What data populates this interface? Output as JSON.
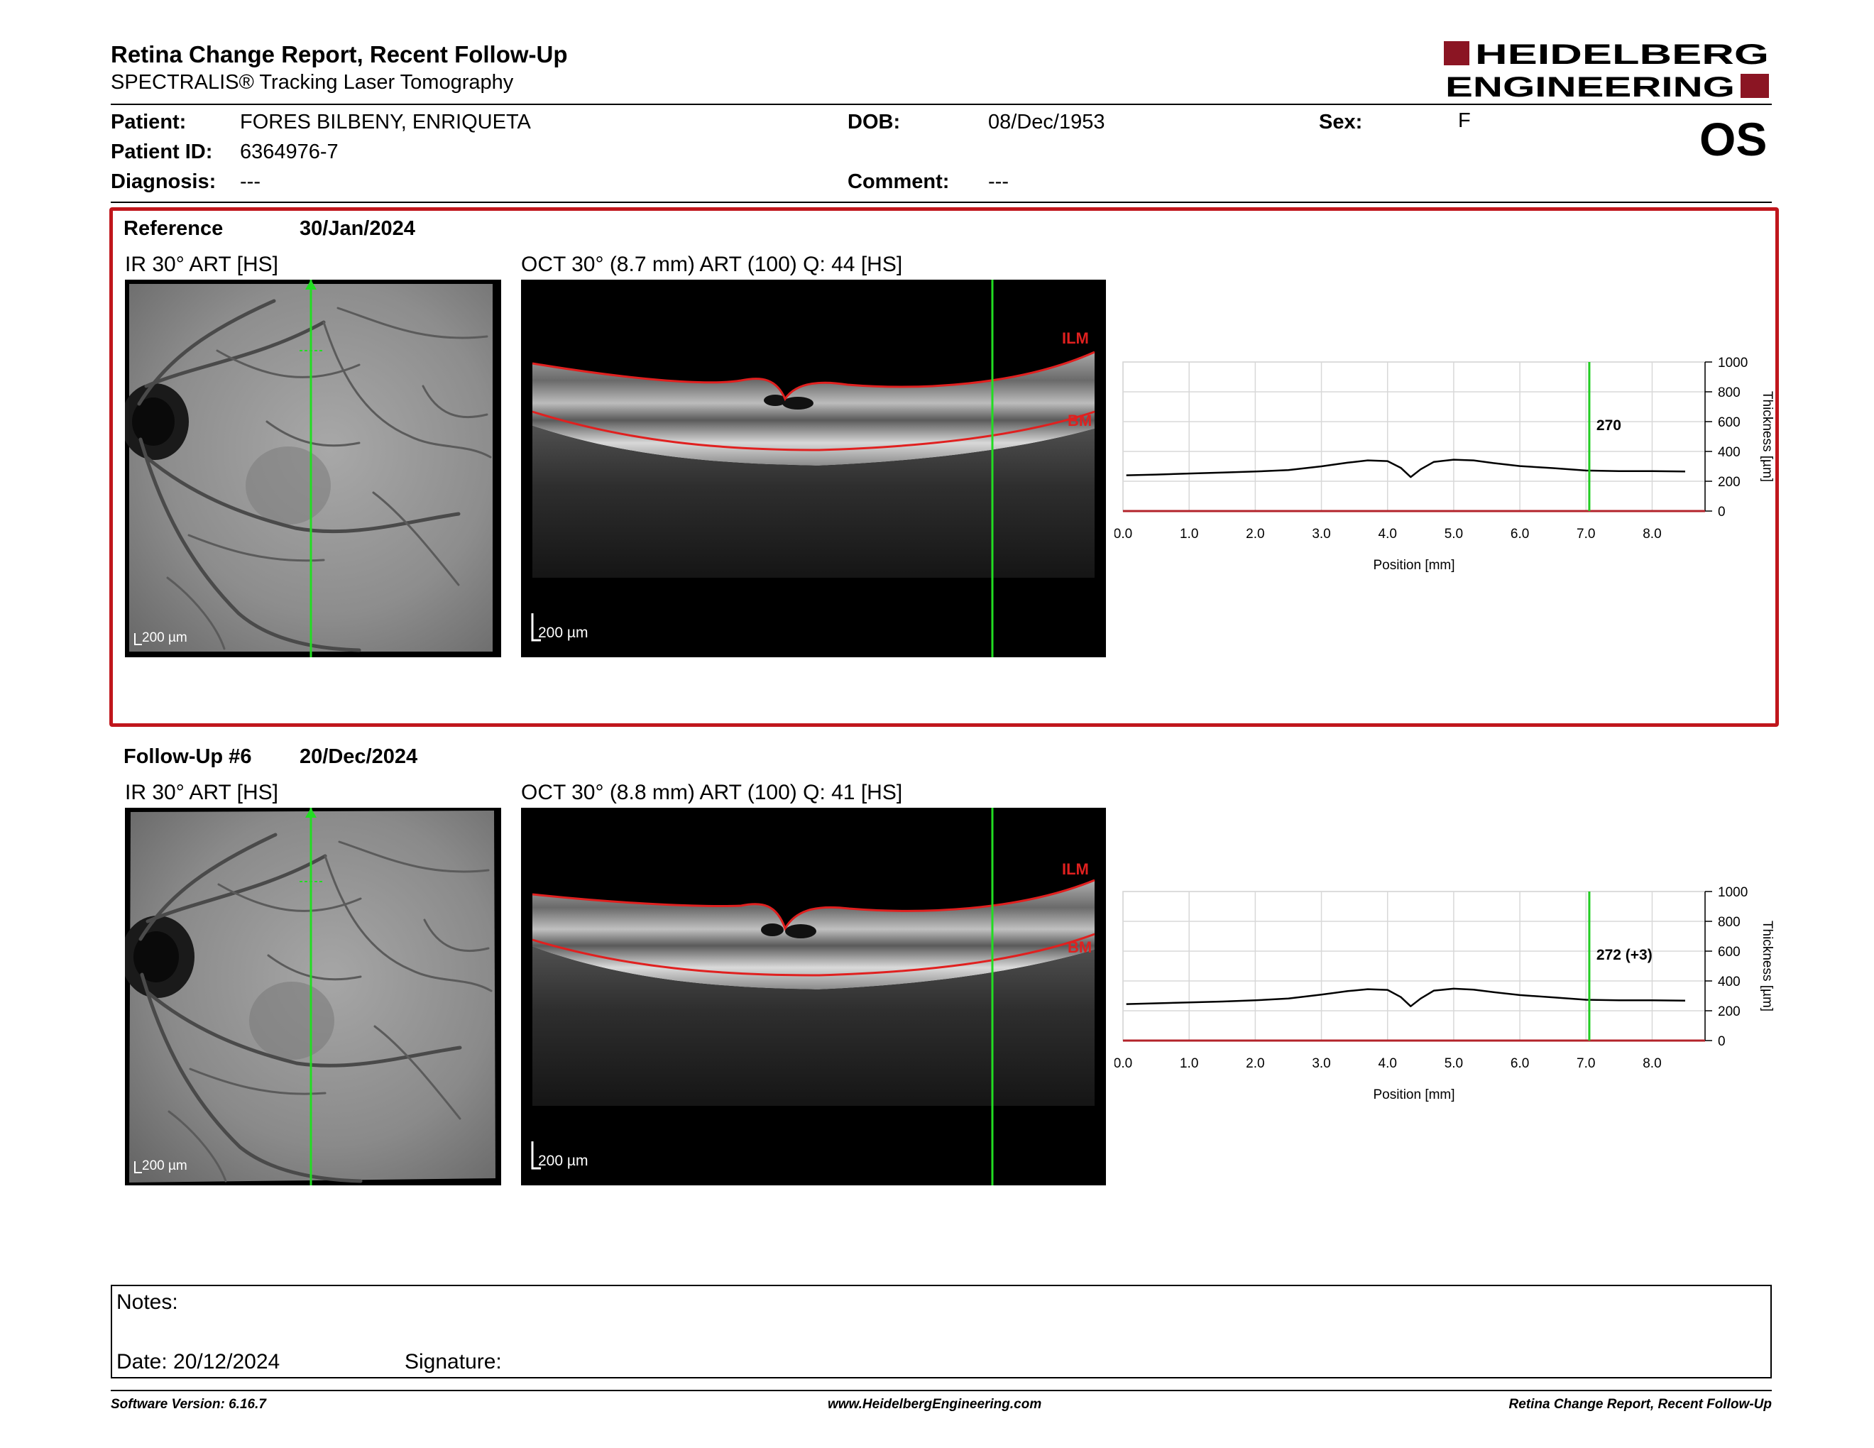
{
  "header": {
    "title": "Retina Change Report, Recent Follow-Up",
    "subtitle": "SPECTRALIS® Tracking Laser Tomography",
    "logo_line1": "HEIDELBERG",
    "logo_line2": "ENGINEERING",
    "eye": "OS"
  },
  "patient": {
    "patient_label": "Patient:",
    "patient_value": "FORES BILBENY, ENRIQUETA",
    "id_label": "Patient ID:",
    "id_value": "6364976-7",
    "diagnosis_label": "Diagnosis:",
    "diagnosis_value": "---",
    "dob_label": "DOB:",
    "dob_value": "08/Dec/1953",
    "comment_label": "Comment:",
    "comment_value": "---",
    "sex_label": "Sex:",
    "sex_value": "F"
  },
  "reference": {
    "label": "Reference",
    "date": "30/Jan/2024",
    "ir_title": "IR 30° ART [HS]",
    "oct_title": "OCT 30° (8.7 mm) ART (100) Q: 44 [HS]",
    "scale_ir": "200 µm",
    "scale_oct": "200 µm",
    "ilm_label": "ILM",
    "bm_label": "BM"
  },
  "followup": {
    "label": "Follow-Up #6",
    "date": "20/Dec/2024",
    "ir_title": "IR 30° ART [HS]",
    "oct_title": "OCT 30° (8.8 mm) ART (100) Q: 41 [HS]",
    "scale_ir": "200 µm",
    "scale_oct": "200 µm",
    "ilm_label": "ILM",
    "bm_label": "BM"
  },
  "chart_data": [
    {
      "type": "line",
      "xlabel": "Position [mm]",
      "ylabel": "Thickness [µm]",
      "xlim": [
        0,
        8.8
      ],
      "ylim": [
        0,
        1000
      ],
      "xticks": [
        "0.0",
        "1.0",
        "2.0",
        "3.0",
        "4.0",
        "5.0",
        "6.0",
        "7.0",
        "8.0"
      ],
      "yticks": [
        "0",
        "200",
        "400",
        "600",
        "800",
        "1000"
      ],
      "grid": true,
      "marker_x": 7.05,
      "marker_label": "270",
      "x": [
        0.05,
        0.5,
        1.0,
        1.5,
        2.0,
        2.5,
        3.0,
        3.4,
        3.7,
        4.0,
        4.2,
        4.35,
        4.5,
        4.7,
        5.0,
        5.3,
        5.6,
        6.0,
        6.5,
        7.0,
        7.5,
        8.0,
        8.5
      ],
      "values": [
        240,
        245,
        252,
        258,
        265,
        275,
        300,
        325,
        340,
        335,
        290,
        228,
        280,
        330,
        345,
        340,
        322,
        302,
        288,
        272,
        268,
        268,
        265
      ],
      "color": "#000000"
    },
    {
      "type": "line",
      "xlabel": "Position [mm]",
      "ylabel": "Thickness [µm]",
      "xlim": [
        0,
        8.8
      ],
      "ylim": [
        0,
        1000
      ],
      "xticks": [
        "0.0",
        "1.0",
        "2.0",
        "3.0",
        "4.0",
        "5.0",
        "6.0",
        "7.0",
        "8.0"
      ],
      "yticks": [
        "0",
        "200",
        "400",
        "600",
        "800",
        "1000"
      ],
      "grid": true,
      "marker_x": 7.05,
      "marker_label": "272 (+3)",
      "x": [
        0.05,
        0.5,
        1.0,
        1.5,
        2.0,
        2.5,
        3.0,
        3.4,
        3.7,
        4.0,
        4.2,
        4.35,
        4.5,
        4.7,
        5.0,
        5.3,
        5.6,
        6.0,
        6.5,
        7.0,
        7.5,
        8.0,
        8.5
      ],
      "values": [
        245,
        250,
        256,
        262,
        270,
        282,
        308,
        332,
        345,
        340,
        292,
        230,
        282,
        335,
        348,
        342,
        325,
        305,
        290,
        274,
        270,
        270,
        268
      ],
      "color": "#000000"
    }
  ],
  "notes": {
    "notes_label": "Notes:",
    "date_label": "Date: 20/12/2024",
    "signature_label": "Signature:"
  },
  "footer": {
    "version": "Software Version: 6.16.7",
    "url": "www.HeidelbergEngineering.com",
    "report_name": "Retina Change Report, Recent Follow-Up"
  }
}
